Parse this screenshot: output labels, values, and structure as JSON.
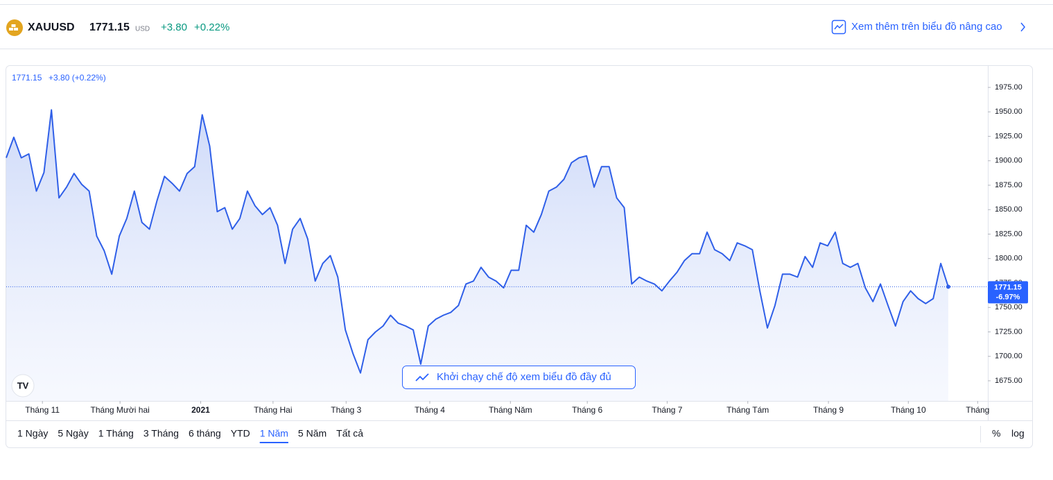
{
  "header": {
    "symbol": "XAUUSD",
    "price": "1771.15",
    "currency": "USD",
    "change": "+3.80",
    "change_percent": "+0.22%",
    "advanced_link": "Xem thêm trên biểu đồ nâng cao"
  },
  "chart_data": {
    "type": "line",
    "color": "#2f5fe8",
    "legend_price": "1771.15",
    "legend_change": "+3.80 (+0.22%)",
    "last_change_label": "-6.97%",
    "launch_button": "Khởi chạy chế độ xem biểu đồ đầy đủ",
    "values": [
      1903,
      1924,
      1903,
      1907,
      1869,
      1888,
      1952,
      1862,
      1873,
      1887,
      1876,
      1869,
      1823,
      1808,
      1784,
      1823,
      1841,
      1869,
      1837,
      1830,
      1859,
      1884,
      1877,
      1869,
      1887,
      1894,
      1947,
      1915,
      1848,
      1852,
      1830,
      1841,
      1869,
      1854,
      1845,
      1852,
      1834,
      1795,
      1830,
      1841,
      1820,
      1777,
      1795,
      1803,
      1781,
      1727,
      1703,
      1683,
      1717,
      1725,
      1731,
      1742,
      1734,
      1731,
      1727,
      1692,
      1731,
      1738,
      1742,
      1745,
      1752,
      1774,
      1777,
      1791,
      1781,
      1777,
      1770,
      1788,
      1788,
      1834,
      1827,
      1845,
      1869,
      1873,
      1881,
      1898,
      1903,
      1905,
      1873,
      1894,
      1894,
      1862,
      1852,
      1774,
      1781,
      1777,
      1774,
      1767,
      1777,
      1786,
      1798,
      1805,
      1805,
      1827,
      1809,
      1805,
      1798,
      1816,
      1813,
      1809,
      1767,
      1729,
      1752,
      1784,
      1784,
      1781,
      1802,
      1791,
      1816,
      1813,
      1827,
      1795,
      1791,
      1795,
      1770,
      1756,
      1774,
      1752,
      1731,
      1756,
      1767,
      1759,
      1754,
      1759,
      1795,
      1771.15
    ],
    "xlim": [
      0,
      130.25
    ],
    "ylim": [
      1654.4,
      1997
    ],
    "xticks": [
      {
        "value": 4.8,
        "label": "Tháng 11"
      },
      {
        "value": 15.1,
        "label": "Tháng Mười hai"
      },
      {
        "value": 25.8,
        "label": "2021"
      },
      {
        "value": 35.4,
        "label": "Tháng Hai"
      },
      {
        "value": 45.1,
        "label": "Tháng 3"
      },
      {
        "value": 56.2,
        "label": "Tháng 4"
      },
      {
        "value": 66.9,
        "label": "Tháng Năm"
      },
      {
        "value": 77.1,
        "label": "Tháng 6"
      },
      {
        "value": 87.7,
        "label": "Tháng 7"
      },
      {
        "value": 98.4,
        "label": "Tháng Tám"
      },
      {
        "value": 109.1,
        "label": "Tháng 9"
      },
      {
        "value": 119.7,
        "label": "Tháng 10"
      },
      {
        "value": 128.9,
        "label": "Tháng"
      }
    ],
    "yticks": [
      {
        "value": 1675,
        "label": "1675.00"
      },
      {
        "value": 1700,
        "label": "1700.00"
      },
      {
        "value": 1725,
        "label": "1725.00"
      },
      {
        "value": 1750,
        "label": "1750.00"
      },
      {
        "value": 1775,
        "label": "1775.00"
      },
      {
        "value": 1800,
        "label": "1800.00"
      },
      {
        "value": 1825,
        "label": "1825.00"
      },
      {
        "value": 1850,
        "label": "1850.00"
      },
      {
        "value": 1875,
        "label": "1875.00"
      },
      {
        "value": 1900,
        "label": "1900.00"
      },
      {
        "value": 1925,
        "label": "1925.00"
      },
      {
        "value": 1950,
        "label": "1950.00"
      },
      {
        "value": 1975,
        "label": "1975.00"
      }
    ]
  },
  "ranges": [
    "1 Ngày",
    "5 Ngày",
    "1 Tháng",
    "3 Tháng",
    "6 tháng",
    "YTD",
    "1 Năm",
    "5 Năm",
    "Tất cả"
  ],
  "selected_range": 6,
  "scale_buttons": [
    "%",
    "log"
  ]
}
